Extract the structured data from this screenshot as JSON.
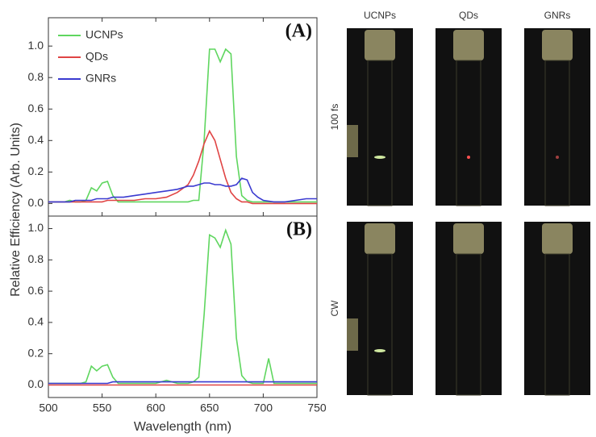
{
  "chart_data": [
    {
      "type": "line",
      "panel_label": "(A)",
      "ylabel": "Relative Efficiency (Arb. Units)",
      "x": [
        500,
        505,
        510,
        515,
        520,
        525,
        530,
        535,
        540,
        545,
        550,
        555,
        560,
        565,
        570,
        580,
        590,
        600,
        610,
        620,
        630,
        635,
        640,
        645,
        650,
        655,
        660,
        665,
        670,
        675,
        680,
        685,
        690,
        695,
        700,
        710,
        720,
        730,
        740,
        750
      ],
      "series": [
        {
          "name": "UCNPs",
          "color": "#5fd65f",
          "values": [
            0.01,
            0.01,
            0.01,
            0.01,
            0.02,
            0.01,
            0.01,
            0.02,
            0.1,
            0.08,
            0.13,
            0.14,
            0.05,
            0.01,
            0.01,
            0.01,
            0.01,
            0.01,
            0.01,
            0.01,
            0.01,
            0.02,
            0.02,
            0.4,
            0.98,
            0.98,
            0.9,
            0.98,
            0.95,
            0.3,
            0.05,
            0.02,
            0.01,
            0.01,
            0.01,
            0.01,
            0.01,
            0.01,
            0.01,
            0.01
          ]
        },
        {
          "name": "QDs",
          "color": "#e04444",
          "values": [
            0.01,
            0.01,
            0.01,
            0.01,
            0.01,
            0.01,
            0.01,
            0.01,
            0.01,
            0.01,
            0.01,
            0.02,
            0.02,
            0.02,
            0.02,
            0.02,
            0.03,
            0.03,
            0.04,
            0.07,
            0.12,
            0.18,
            0.27,
            0.38,
            0.46,
            0.4,
            0.28,
            0.16,
            0.07,
            0.03,
            0.01,
            0.01,
            0,
            0,
            0,
            0,
            0,
            0,
            0,
            0
          ]
        },
        {
          "name": "GNRs",
          "color": "#3a3ad0",
          "values": [
            0.01,
            0.01,
            0.01,
            0.01,
            0.01,
            0.02,
            0.02,
            0.02,
            0.02,
            0.03,
            0.03,
            0.03,
            0.04,
            0.04,
            0.04,
            0.05,
            0.06,
            0.07,
            0.08,
            0.09,
            0.11,
            0.11,
            0.12,
            0.13,
            0.13,
            0.12,
            0.12,
            0.11,
            0.11,
            0.12,
            0.16,
            0.15,
            0.07,
            0.04,
            0.02,
            0.01,
            0.01,
            0.02,
            0.03,
            0.03
          ]
        }
      ],
      "xlim": [
        500,
        750
      ],
      "ylim": [
        -0.08,
        1.18
      ],
      "yticks": [
        {
          "value": 0,
          "label": "0.0"
        },
        0.2,
        0.4,
        0.6,
        0.8,
        {
          "value": 1,
          "label": "1.0"
        }
      ],
      "legend": "upper left"
    },
    {
      "type": "line",
      "panel_label": "(B)",
      "xlabel": "Wavelength (nm)",
      "x": [
        500,
        505,
        510,
        515,
        520,
        525,
        530,
        535,
        540,
        545,
        550,
        555,
        560,
        565,
        570,
        580,
        590,
        600,
        610,
        620,
        630,
        635,
        640,
        645,
        650,
        655,
        660,
        665,
        670,
        675,
        680,
        685,
        690,
        695,
        700,
        705,
        710,
        720,
        730,
        740,
        750
      ],
      "series": [
        {
          "name": "UCNPs",
          "color": "#5fd65f",
          "values": [
            0.01,
            0.01,
            0.01,
            0.01,
            0.01,
            0.01,
            0.01,
            0.02,
            0.12,
            0.09,
            0.12,
            0.13,
            0.05,
            0.01,
            0.01,
            0.01,
            0.01,
            0.01,
            0.03,
            0.01,
            0.01,
            0.02,
            0.05,
            0.45,
            0.96,
            0.94,
            0.88,
            0.99,
            0.9,
            0.3,
            0.06,
            0.02,
            0.01,
            0.01,
            0.01,
            0.17,
            0.01,
            0.01,
            0.01,
            0.01,
            0.01
          ]
        },
        {
          "name": "QDs",
          "color": "#e04444",
          "values": [
            0,
            0,
            0,
            0,
            0,
            0,
            0,
            0,
            0,
            0,
            0,
            0,
            0,
            0,
            0,
            0,
            0,
            0,
            0,
            0,
            0,
            0,
            0,
            0,
            0,
            0,
            0,
            0,
            0,
            0,
            0,
            0,
            0,
            0,
            0,
            0,
            0,
            0,
            0,
            0,
            0
          ]
        },
        {
          "name": "GNRs",
          "color": "#3a3ad0",
          "values": [
            0.01,
            0.01,
            0.01,
            0.01,
            0.01,
            0.01,
            0.01,
            0.01,
            0.01,
            0.01,
            0.01,
            0.01,
            0.02,
            0.02,
            0.02,
            0.02,
            0.02,
            0.02,
            0.02,
            0.02,
            0.02,
            0.02,
            0.02,
            0.02,
            0.02,
            0.02,
            0.02,
            0.02,
            0.02,
            0.02,
            0.02,
            0.02,
            0.02,
            0.02,
            0.02,
            0.02,
            0.02,
            0.02,
            0.02,
            0.02,
            0.02
          ]
        }
      ],
      "xlim": [
        500,
        750
      ],
      "ylim": [
        -0.08,
        1.08
      ],
      "xticks": [
        500,
        550,
        600,
        650,
        700,
        750
      ],
      "yticks": [
        {
          "value": 0,
          "label": "0.0"
        },
        0.2,
        0.4,
        0.6,
        0.8,
        {
          "value": 1,
          "label": "1.0"
        }
      ]
    }
  ],
  "photos": {
    "columns": [
      "UCNPs",
      "QDs",
      "GNRs"
    ],
    "rows": [
      "100 fs",
      "CW"
    ]
  }
}
